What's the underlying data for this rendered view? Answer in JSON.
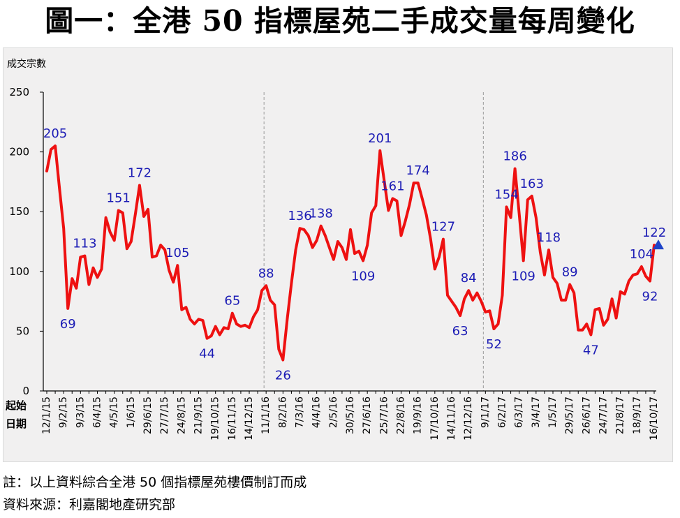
{
  "title": "圖一：全港 50 指標屋苑二手成交量每周變化",
  "notes": {
    "note": "註：以上資料綜合全港 50 個指標屋苑樓價制訂而成",
    "source": "資料來源：利嘉閣地產研究部"
  },
  "colors": {
    "line": "#ee1111",
    "label": "#1c1cb5",
    "marker": "#1f44c8",
    "panel": "#f1f0f0"
  },
  "chart_data": {
    "type": "line",
    "title": "圖一：全港 50 指標屋苑二手成交量每周變化",
    "ylabel": "成交宗數",
    "xlabel": "起始日期",
    "ylim": [
      0,
      250
    ],
    "yticks": [
      0,
      50,
      100,
      150,
      200,
      250
    ],
    "grid": false,
    "x_tick_labels": [
      "12/1/15",
      "9/2/15",
      "9/3/15",
      "6/4/15",
      "4/5/15",
      "1/6/15",
      "29/6/15",
      "27/7/15",
      "24/8/15",
      "21/9/15",
      "19/10/15",
      "16/11/15",
      "14/12/15",
      "11/1/16",
      "8/2/16",
      "7/3/16",
      "4/4/16",
      "2/5/16",
      "30/5/16",
      "27/6/16",
      "25/7/16",
      "22/8/16",
      "19/9/16",
      "17/10/16",
      "14/11/16",
      "12/12/16",
      "9/1/17",
      "6/2/17",
      "6/3/17",
      "3/4/17",
      "1/5/17",
      "29/5/17",
      "26/6/17",
      "24/7/17",
      "21/8/17",
      "18/9/17",
      "16/10/17"
    ],
    "year_dividers_at_week": [
      52,
      104
    ],
    "series": [
      {
        "values": [
          184,
          202,
          205,
          170,
          136,
          69,
          94,
          86,
          112,
          113,
          89,
          103,
          95,
          102,
          145,
          133,
          126,
          151,
          149,
          119,
          125,
          148,
          172,
          146,
          152,
          112,
          113,
          122,
          118,
          101,
          91,
          105,
          68,
          70,
          60,
          56,
          60,
          59,
          44,
          46,
          54,
          47,
          53,
          52,
          65,
          56,
          54,
          55,
          53,
          62,
          68,
          84,
          88,
          76,
          72,
          35,
          26,
          60,
          90,
          118,
          136,
          135,
          130,
          120,
          126,
          138,
          130,
          120,
          110,
          125,
          120,
          110,
          135,
          115,
          117,
          109,
          122,
          149,
          155,
          201,
          176,
          151,
          161,
          159,
          130,
          142,
          156,
          174,
          174,
          161,
          147,
          127,
          102,
          112,
          127,
          80,
          75,
          70,
          63,
          77,
          84,
          76,
          82,
          75,
          66,
          67,
          52,
          56,
          80,
          154,
          145,
          186,
          148,
          109,
          160,
          163,
          145,
          116,
          97,
          118,
          95,
          90,
          76,
          76,
          89,
          82,
          51,
          51,
          56,
          47,
          68,
          69,
          55,
          60,
          77,
          61,
          83,
          81,
          92,
          97,
          98,
          104,
          96,
          92,
          122
        ]
      }
    ],
    "data_labels": [
      {
        "week": 2,
        "value": 205,
        "text": "205",
        "pos": "above"
      },
      {
        "week": 5,
        "value": 69,
        "text": "69",
        "pos": "below"
      },
      {
        "week": 9,
        "value": 113,
        "text": "113",
        "pos": "above"
      },
      {
        "week": 17,
        "value": 151,
        "text": "151",
        "pos": "above"
      },
      {
        "week": 22,
        "value": 172,
        "text": "172",
        "pos": "above"
      },
      {
        "week": 31,
        "value": 105,
        "text": "105",
        "pos": "above"
      },
      {
        "week": 38,
        "value": 44,
        "text": "44",
        "pos": "below"
      },
      {
        "week": 44,
        "value": 65,
        "text": "65",
        "pos": "above"
      },
      {
        "week": 52,
        "value": 88,
        "text": "88",
        "pos": "above"
      },
      {
        "week": 56,
        "value": 26,
        "text": "26",
        "pos": "below"
      },
      {
        "week": 60,
        "value": 136,
        "text": "136",
        "pos": "above"
      },
      {
        "week": 65,
        "value": 138,
        "text": "138",
        "pos": "above"
      },
      {
        "week": 75,
        "value": 109,
        "text": "109",
        "pos": "below"
      },
      {
        "week": 79,
        "value": 201,
        "text": "201",
        "pos": "above"
      },
      {
        "week": 82,
        "value": 161,
        "text": "161",
        "pos": "above"
      },
      {
        "week": 88,
        "value": 174,
        "text": "174",
        "pos": "above"
      },
      {
        "week": 94,
        "value": 127,
        "text": "127",
        "pos": "above"
      },
      {
        "week": 98,
        "value": 63,
        "text": "63",
        "pos": "below"
      },
      {
        "week": 100,
        "value": 84,
        "text": "84",
        "pos": "above"
      },
      {
        "week": 106,
        "value": 52,
        "text": "52",
        "pos": "below"
      },
      {
        "week": 109,
        "value": 154,
        "text": "154",
        "pos": "above"
      },
      {
        "week": 111,
        "value": 186,
        "text": "186",
        "pos": "above"
      },
      {
        "week": 113,
        "value": 109,
        "text": "109",
        "pos": "below"
      },
      {
        "week": 115,
        "value": 163,
        "text": "163",
        "pos": "above"
      },
      {
        "week": 119,
        "value": 118,
        "text": "118",
        "pos": "above"
      },
      {
        "week": 124,
        "value": 89,
        "text": "89",
        "pos": "above"
      },
      {
        "week": 129,
        "value": 47,
        "text": "47",
        "pos": "below"
      },
      {
        "week": 141,
        "value": 104,
        "text": "104",
        "pos": "above"
      },
      {
        "week": 143,
        "value": 92,
        "text": "92",
        "pos": "below"
      },
      {
        "week": 144,
        "value": 122,
        "text": "122",
        "pos": "above"
      }
    ],
    "latest_marker": {
      "week": 144,
      "value": 122,
      "shape": "triangle-up"
    }
  }
}
